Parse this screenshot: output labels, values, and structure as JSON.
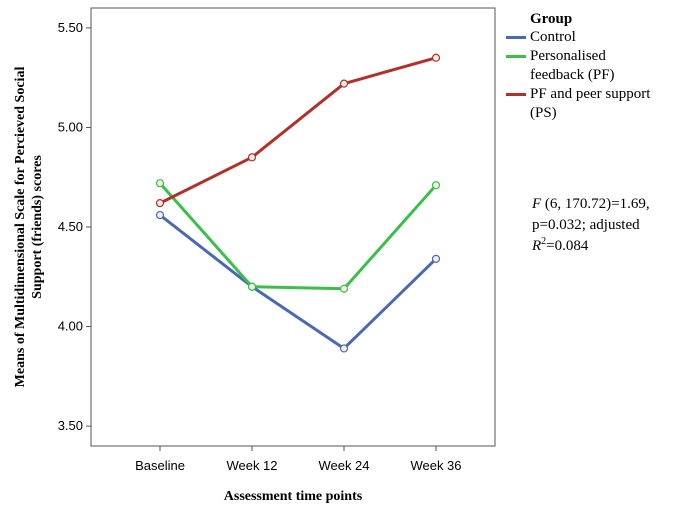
{
  "chart_data": {
    "type": "line",
    "xlabel": "Assessment time points",
    "ylabel_lines": [
      "Means of  Multidimensional Scale for Percieved Social",
      "Support (friends) scores"
    ],
    "categories": [
      "Baseline",
      "Week 12",
      "Week 24",
      "Week 36"
    ],
    "ylim": [
      3.4,
      5.6
    ],
    "yticks": [
      "3.50",
      "4.00",
      "4.50",
      "5.00",
      "5.50"
    ],
    "ytick_values": [
      3.5,
      4.0,
      4.5,
      5.0,
      5.5
    ],
    "legend_title": "Group",
    "legend_position": "right",
    "series": [
      {
        "name": "Control",
        "label_lines": [
          "Control"
        ],
        "color": "#4a69b5",
        "values": [
          4.56,
          4.2,
          3.89,
          4.34
        ]
      },
      {
        "name": "Personalised feedback (PF)",
        "label_lines": [
          "Personalised",
          "feedback (PF)"
        ],
        "color": "#3bbf4a",
        "values": [
          4.72,
          4.2,
          4.19,
          4.71
        ]
      },
      {
        "name": "PF and peer support (PS)",
        "label_lines": [
          "PF and peer support",
          "(PS)"
        ],
        "color": "#b22f2a",
        "values": [
          4.62,
          4.85,
          5.22,
          5.35
        ]
      }
    ],
    "annotation": {
      "line1_italic": "F",
      "line1_rest": " (6, 170.72)=1.69,",
      "line2": "p=0.032; adjusted",
      "line3_italic": "R",
      "line3_sup": "2",
      "line3_rest": "=0.084"
    }
  }
}
